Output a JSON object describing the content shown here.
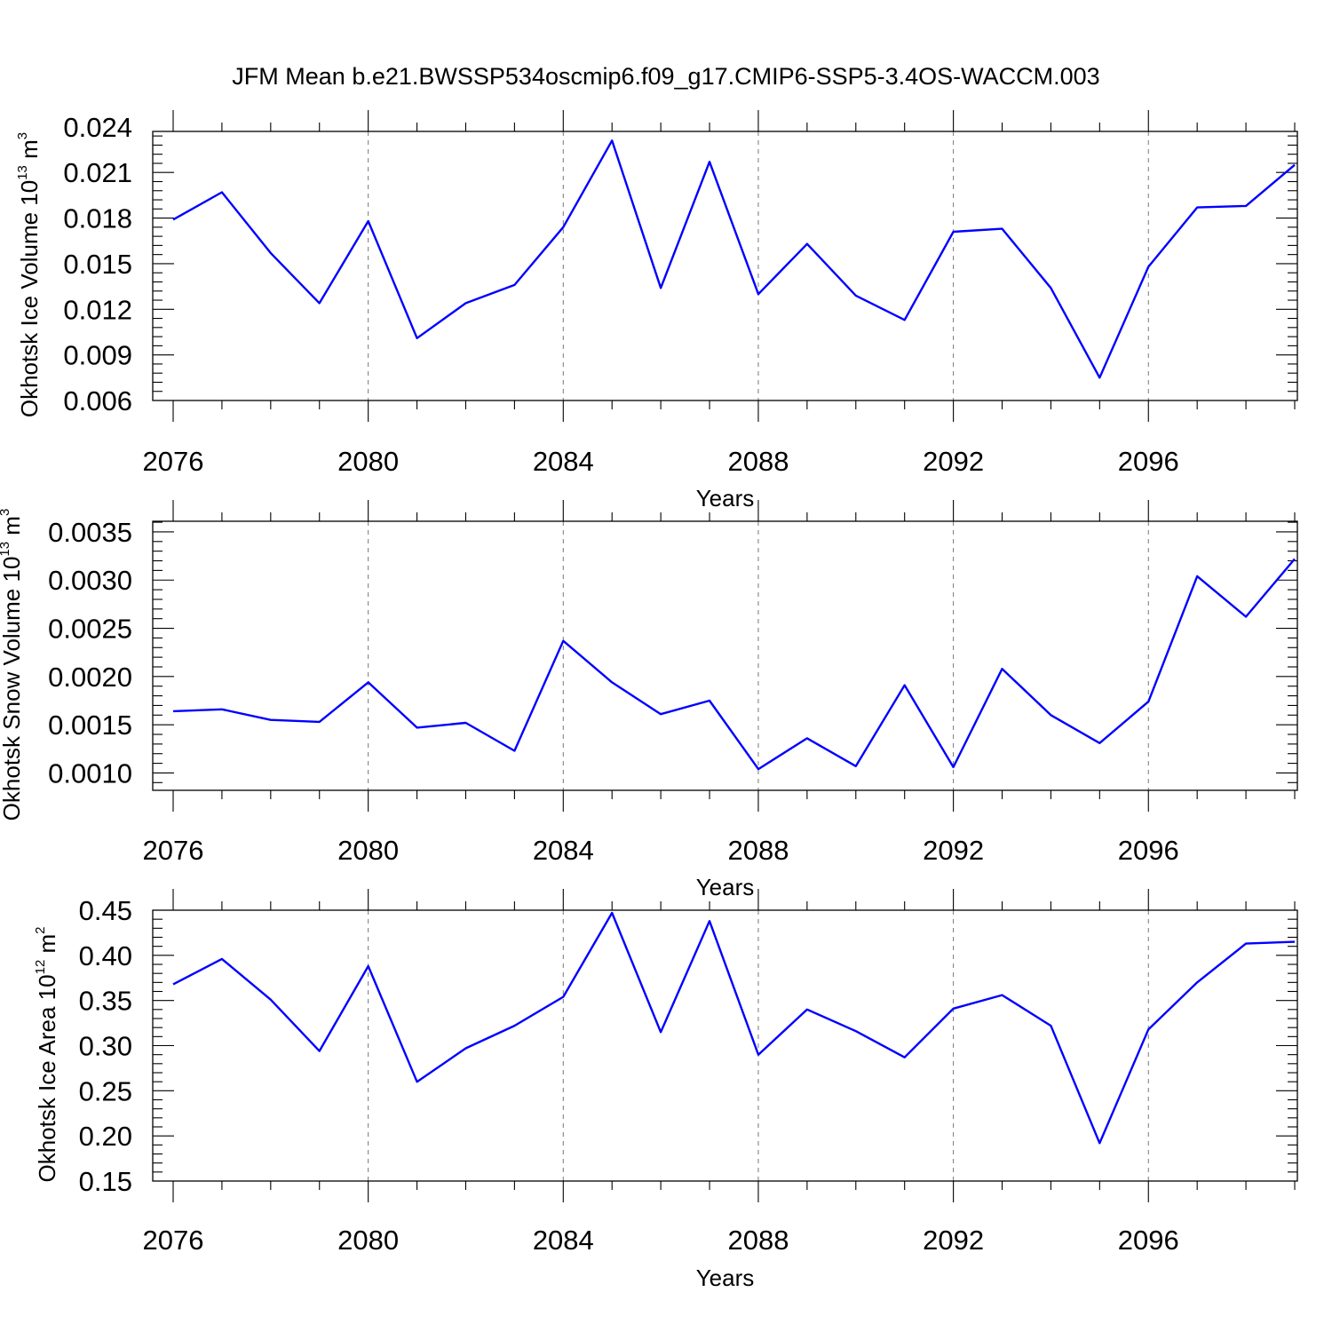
{
  "title": "JFM Mean b.e21.BWSSP534oscmip6.f09_g17.CMIP6-SSP5-3.4OS-WACCM.003",
  "chart_data": [
    {
      "type": "line",
      "ylabel": "Okhotsk Ice Volume 10",
      "ylabel_exp": "13",
      "ylabel_unit": " m",
      "ylabel_unit_exp": "3",
      "xlabel": "Years",
      "xlim": [
        2076,
        2099
      ],
      "ylim": [
        0.006,
        0.0237
      ],
      "xticks": [
        2076,
        2080,
        2084,
        2088,
        2092,
        2096
      ],
      "xtick_labels": [
        "2076",
        "2080",
        "2084",
        "2088",
        "2092",
        "2096"
      ],
      "yticks": [
        0.006,
        0.009,
        0.012,
        0.015,
        0.018,
        0.021,
        0.024
      ],
      "ytick_labels": [
        "0.006",
        "0.009",
        "0.012",
        "0.015",
        "0.018",
        "0.021",
        "0.024"
      ],
      "grid": "vertical dashed at major x ticks",
      "color": "#0000ff",
      "x": [
        2076,
        2077,
        2078,
        2079,
        2080,
        2081,
        2082,
        2083,
        2084,
        2085,
        2086,
        2087,
        2088,
        2089,
        2090,
        2091,
        2092,
        2093,
        2094,
        2095,
        2096,
        2097,
        2098,
        2099
      ],
      "y": [
        0.0179,
        0.0197,
        0.0157,
        0.0124,
        0.0178,
        0.0101,
        0.0124,
        0.0136,
        0.0174,
        0.0231,
        0.0134,
        0.0217,
        0.013,
        0.0163,
        0.0129,
        0.0113,
        0.0171,
        0.0173,
        0.0134,
        0.0075,
        0.0148,
        0.0187,
        0.0188,
        0.0215
      ]
    },
    {
      "type": "line",
      "ylabel": "Okhotsk Snow Volume 10",
      "ylabel_exp": "13",
      "ylabel_unit": " m",
      "ylabel_unit_exp": "3",
      "xlabel": "Years",
      "xlim": [
        2076,
        2099
      ],
      "ylim": [
        0.00082,
        0.00361
      ],
      "xticks": [
        2076,
        2080,
        2084,
        2088,
        2092,
        2096
      ],
      "xtick_labels": [
        "2076",
        "2080",
        "2084",
        "2088",
        "2092",
        "2096"
      ],
      "yticks": [
        0.001,
        0.0015,
        0.002,
        0.0025,
        0.003,
        0.0035
      ],
      "ytick_labels": [
        "0.0010",
        "0.0015",
        "0.0020",
        "0.0025",
        "0.0030",
        "0.0035"
      ],
      "grid": "vertical dashed at major x ticks",
      "color": "#0000ff",
      "x": [
        2076,
        2077,
        2078,
        2079,
        2080,
        2081,
        2082,
        2083,
        2084,
        2085,
        2086,
        2087,
        2088,
        2089,
        2090,
        2091,
        2092,
        2093,
        2094,
        2095,
        2096,
        2097,
        2098,
        2099
      ],
      "y": [
        0.00164,
        0.00166,
        0.00155,
        0.00153,
        0.00194,
        0.00147,
        0.00152,
        0.00123,
        0.00237,
        0.00194,
        0.00161,
        0.00175,
        0.00104,
        0.00136,
        0.00107,
        0.00191,
        0.00106,
        0.00208,
        0.0016,
        0.00131,
        0.00174,
        0.00304,
        0.00262,
        0.00322
      ]
    },
    {
      "type": "line",
      "ylabel": "Okhotsk Ice Area 10",
      "ylabel_exp": "12",
      "ylabel_unit": " m",
      "ylabel_unit_exp": "2",
      "xlabel": "Years",
      "xlim": [
        2076,
        2099
      ],
      "ylim": [
        0.15,
        0.45
      ],
      "xticks": [
        2076,
        2080,
        2084,
        2088,
        2092,
        2096
      ],
      "xtick_labels": [
        "2076",
        "2080",
        "2084",
        "2088",
        "2092",
        "2096"
      ],
      "yticks": [
        0.15,
        0.2,
        0.25,
        0.3,
        0.35,
        0.4,
        0.45
      ],
      "ytick_labels": [
        "0.15",
        "0.20",
        "0.25",
        "0.30",
        "0.35",
        "0.40",
        "0.45"
      ],
      "grid": "vertical dashed at major x ticks",
      "color": "#0000ff",
      "x": [
        2076,
        2077,
        2078,
        2079,
        2080,
        2081,
        2082,
        2083,
        2084,
        2085,
        2086,
        2087,
        2088,
        2089,
        2090,
        2091,
        2092,
        2093,
        2094,
        2095,
        2096,
        2097,
        2098,
        2099
      ],
      "y": [
        0.368,
        0.396,
        0.351,
        0.294,
        0.388,
        0.26,
        0.297,
        0.322,
        0.354,
        0.447,
        0.315,
        0.438,
        0.29,
        0.34,
        0.316,
        0.287,
        0.341,
        0.356,
        0.322,
        0.192,
        0.318,
        0.37,
        0.413,
        0.415
      ]
    }
  ]
}
